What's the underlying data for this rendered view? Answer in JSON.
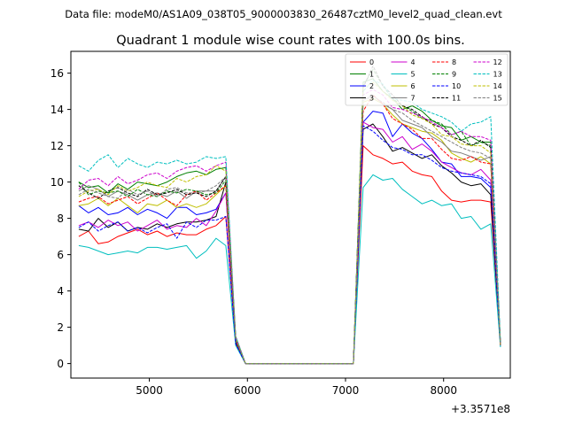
{
  "chart_data": {
    "type": "line",
    "suptitle": "Data file: modeM0/AS1A09_038T05_9000003830_26487cztM0_level2_quad_clean.evt",
    "title": "Quadrant 1 module wise count rates with 100.0s bins.",
    "xlabel": "",
    "ylabel": "",
    "offset_text": "+3.3571e8",
    "xlim": [
      4200,
      8680
    ],
    "ylim": [
      -0.8,
      17.2
    ],
    "xticks": [
      5000,
      6000,
      7000,
      8000
    ],
    "yticks": [
      0,
      2,
      4,
      6,
      8,
      10,
      12,
      14,
      16
    ],
    "grid": false,
    "legend": {
      "placement": "top-right",
      "columns": 4
    },
    "x": [
      4280,
      4380,
      4480,
      4580,
      4680,
      4780,
      4880,
      4980,
      5080,
      5180,
      5280,
      5380,
      5480,
      5580,
      5680,
      5780,
      5880,
      5980,
      6080,
      6180,
      6280,
      6380,
      6480,
      6580,
      6680,
      6780,
      6880,
      6980,
      7080,
      7180,
      7280,
      7380,
      7480,
      7580,
      7680,
      7780,
      7880,
      7980,
      8080,
      8180,
      8280,
      8380,
      8480,
      8580
    ],
    "series": [
      {
        "name": "0",
        "color": "#ff0000",
        "dash": false,
        "values": [
          7.0,
          7.3,
          6.6,
          6.7,
          7.0,
          7.2,
          7.4,
          7.1,
          7.3,
          7.0,
          7.2,
          7.1,
          7.1,
          7.4,
          7.6,
          8.1,
          1.1,
          0,
          0,
          0,
          0,
          0,
          0,
          0,
          0,
          0,
          0,
          0,
          0,
          12.0,
          11.5,
          11.3,
          11.0,
          11.1,
          10.6,
          10.4,
          10.3,
          9.5,
          9.0,
          8.9,
          9.0,
          9.0,
          8.9,
          1.0
        ]
      },
      {
        "name": "1",
        "color": "#008000",
        "dash": false,
        "values": [
          10.0,
          9.7,
          9.8,
          9.4,
          9.9,
          9.6,
          10.0,
          9.9,
          9.8,
          10.0,
          10.3,
          10.5,
          10.6,
          10.4,
          10.7,
          10.8,
          1.5,
          0,
          0,
          0,
          0,
          0,
          0,
          0,
          0,
          0,
          0,
          0,
          0,
          15.5,
          15.7,
          15.0,
          14.6,
          14.0,
          14.2,
          13.9,
          13.4,
          13.1,
          13.0,
          12.3,
          12.5,
          12.2,
          12.2,
          1.1
        ]
      },
      {
        "name": "2",
        "color": "#0000ff",
        "dash": false,
        "values": [
          8.7,
          8.3,
          8.6,
          8.2,
          8.3,
          8.6,
          8.2,
          8.5,
          8.3,
          8.0,
          8.6,
          8.6,
          8.2,
          8.3,
          8.5,
          9.4,
          1.3,
          0,
          0,
          0,
          0,
          0,
          0,
          0,
          0,
          0,
          0,
          0,
          0,
          13.3,
          13.9,
          13.8,
          12.5,
          13.2,
          12.7,
          12.4,
          11.8,
          11.1,
          11.0,
          10.3,
          10.3,
          10.2,
          9.7,
          1.0
        ]
      },
      {
        "name": "3",
        "color": "#000000",
        "dash": false,
        "values": [
          7.4,
          7.3,
          8.0,
          7.5,
          7.8,
          7.3,
          7.5,
          7.4,
          7.7,
          7.5,
          7.7,
          7.8,
          7.8,
          7.9,
          8.1,
          10.0,
          1.2,
          0,
          0,
          0,
          0,
          0,
          0,
          0,
          0,
          0,
          0,
          0,
          0,
          12.9,
          13.2,
          12.5,
          11.7,
          11.9,
          11.6,
          11.3,
          11.5,
          10.9,
          10.5,
          10.0,
          9.8,
          9.9,
          9.3,
          1.0
        ]
      },
      {
        "name": "4",
        "color": "#cc00cc",
        "dash": false,
        "values": [
          7.6,
          7.8,
          7.5,
          7.9,
          7.6,
          7.8,
          7.3,
          7.6,
          7.9,
          7.4,
          7.6,
          7.5,
          8.0,
          7.6,
          8.4,
          9.4,
          1.3,
          0,
          0,
          0,
          0,
          0,
          0,
          0,
          0,
          0,
          0,
          0,
          0,
          13.3,
          13.0,
          12.9,
          12.2,
          12.5,
          11.8,
          12.1,
          11.7,
          11.1,
          10.8,
          10.5,
          10.4,
          10.7,
          10.1,
          1.0
        ]
      },
      {
        "name": "5",
        "color": "#00bfbf",
        "dash": false,
        "values": [
          6.5,
          6.4,
          6.2,
          6.0,
          6.1,
          6.2,
          6.1,
          6.4,
          6.4,
          6.3,
          6.4,
          6.5,
          5.8,
          6.2,
          6.9,
          6.5,
          1.0,
          0,
          0,
          0,
          0,
          0,
          0,
          0,
          0,
          0,
          0,
          0,
          0,
          9.7,
          10.4,
          10.1,
          10.2,
          9.6,
          9.2,
          8.8,
          9.0,
          8.7,
          8.8,
          8.0,
          8.1,
          7.4,
          7.7,
          0.9
        ]
      },
      {
        "name": "6",
        "color": "#bfbf00",
        "dash": false,
        "values": [
          8.7,
          8.8,
          9.1,
          8.7,
          9.1,
          8.7,
          8.3,
          8.8,
          8.7,
          9.0,
          8.6,
          8.8,
          8.6,
          8.8,
          9.3,
          9.8,
          1.3,
          0,
          0,
          0,
          0,
          0,
          0,
          0,
          0,
          0,
          0,
          0,
          0,
          14.4,
          14.6,
          14.3,
          13.7,
          13.2,
          13.0,
          12.8,
          12.7,
          12.3,
          11.6,
          11.3,
          11.1,
          11.4,
          11.0,
          1.0
        ]
      },
      {
        "name": "7",
        "color": "#808080",
        "dash": false,
        "values": [
          9.5,
          9.8,
          9.6,
          9.2,
          9.5,
          9.3,
          9.0,
          9.3,
          9.4,
          9.2,
          9.5,
          9.1,
          9.5,
          9.5,
          9.5,
          10.3,
          1.3,
          0,
          0,
          0,
          0,
          0,
          0,
          0,
          0,
          0,
          0,
          0,
          0,
          14.5,
          14.8,
          14.3,
          14.0,
          13.4,
          13.2,
          13.0,
          12.5,
          12.2,
          11.7,
          11.6,
          11.4,
          11.2,
          11.4,
          1.1
        ]
      },
      {
        "name": "8",
        "color": "#ff0000",
        "dash": true,
        "values": [
          8.9,
          9.1,
          9.2,
          8.8,
          9.0,
          9.2,
          8.8,
          9.1,
          9.4,
          9.0,
          8.7,
          9.3,
          9.5,
          9.0,
          9.4,
          9.8,
          1.3,
          0,
          0,
          0,
          0,
          0,
          0,
          0,
          0,
          0,
          0,
          0,
          0,
          13.9,
          14.8,
          14.3,
          13.5,
          13.2,
          12.9,
          12.4,
          12.4,
          11.8,
          11.3,
          11.2,
          11.4,
          11.1,
          11.0,
          1.0
        ]
      },
      {
        "name": "9",
        "color": "#008000",
        "dash": true,
        "values": [
          10.0,
          9.3,
          9.5,
          9.4,
          9.5,
          9.2,
          9.6,
          9.3,
          9.2,
          9.5,
          9.4,
          9.6,
          9.5,
          9.3,
          9.4,
          10.1,
          1.4,
          0,
          0,
          0,
          0,
          0,
          0,
          0,
          0,
          0,
          0,
          0,
          0,
          15.3,
          16.2,
          15.3,
          14.6,
          14.2,
          13.9,
          13.5,
          13.4,
          13.2,
          12.6,
          12.8,
          12.0,
          12.2,
          12.0,
          1.1
        ]
      },
      {
        "name": "10",
        "color": "#0000ff",
        "dash": true,
        "values": [
          7.5,
          7.8,
          7.3,
          7.6,
          7.8,
          7.3,
          7.5,
          7.2,
          7.5,
          7.7,
          6.9,
          7.8,
          7.5,
          7.9,
          7.9,
          8.1,
          1.1,
          0,
          0,
          0,
          0,
          0,
          0,
          0,
          0,
          0,
          0,
          0,
          0,
          13.1,
          12.8,
          12.3,
          11.9,
          11.8,
          11.5,
          11.5,
          11.2,
          10.8,
          10.6,
          10.5,
          10.4,
          10.3,
          9.9,
          1.0
        ]
      },
      {
        "name": "11",
        "color": "#000000",
        "dash": true,
        "values": [
          9.8,
          9.4,
          9.1,
          9.5,
          9.7,
          9.4,
          9.2,
          9.6,
          9.3,
          9.4,
          9.6,
          9.3,
          9.4,
          9.2,
          9.5,
          10.3,
          1.4,
          0,
          0,
          0,
          0,
          0,
          0,
          0,
          0,
          0,
          0,
          0,
          0,
          15.2,
          16.4,
          15.3,
          14.8,
          14.2,
          14.0,
          13.6,
          13.2,
          13.0,
          12.5,
          12.3,
          12.0,
          12.3,
          11.9,
          1.1
        ]
      },
      {
        "name": "12",
        "color": "#cc00cc",
        "dash": true,
        "values": [
          9.6,
          10.1,
          10.2,
          9.8,
          10.3,
          9.9,
          10.1,
          10.4,
          10.5,
          10.2,
          10.6,
          10.8,
          10.9,
          10.6,
          10.9,
          11.1,
          1.5,
          0,
          0,
          0,
          0,
          0,
          0,
          0,
          0,
          0,
          0,
          0,
          0,
          14.8,
          15.1,
          14.8,
          14.1,
          14.0,
          13.8,
          13.6,
          13.3,
          13.0,
          12.6,
          12.8,
          12.5,
          12.5,
          12.3,
          1.1
        ]
      },
      {
        "name": "13",
        "color": "#00bfbf",
        "dash": true,
        "values": [
          10.9,
          10.6,
          11.2,
          11.5,
          10.8,
          11.3,
          11.0,
          10.8,
          11.1,
          11.0,
          11.2,
          11.0,
          11.1,
          11.4,
          11.3,
          11.4,
          1.5,
          0,
          0,
          0,
          0,
          0,
          0,
          0,
          0,
          0,
          0,
          0,
          0,
          15.0,
          15.6,
          15.4,
          14.6,
          14.5,
          14.4,
          14.0,
          13.8,
          13.6,
          13.3,
          12.8,
          13.2,
          13.3,
          13.6,
          1.2
        ]
      },
      {
        "name": "14",
        "color": "#bfbf00",
        "dash": true,
        "values": [
          9.2,
          9.5,
          9.6,
          9.3,
          9.8,
          9.5,
          9.7,
          10.0,
          9.8,
          9.7,
          10.2,
          10.0,
          10.3,
          10.4,
          10.9,
          10.6,
          1.4,
          0,
          0,
          0,
          0,
          0,
          0,
          0,
          0,
          0,
          0,
          0,
          0,
          15.2,
          15.5,
          15.0,
          14.5,
          14.2,
          13.7,
          13.5,
          13.2,
          12.6,
          12.5,
          12.1,
          12.0,
          12.0,
          11.6,
          1.0
        ]
      },
      {
        "name": "15",
        "color": "#808080",
        "dash": true,
        "values": [
          9.3,
          9.6,
          9.4,
          9.2,
          9.1,
          9.6,
          9.3,
          9.5,
          9.2,
          9.6,
          9.7,
          9.4,
          9.4,
          9.5,
          9.8,
          10.3,
          1.4,
          0,
          0,
          0,
          0,
          0,
          0,
          0,
          0,
          0,
          0,
          0,
          0,
          14.5,
          14.7,
          14.4,
          14.0,
          13.8,
          13.4,
          13.1,
          12.8,
          12.5,
          12.2,
          11.9,
          11.7,
          11.6,
          11.3,
          1.1
        ]
      }
    ]
  }
}
